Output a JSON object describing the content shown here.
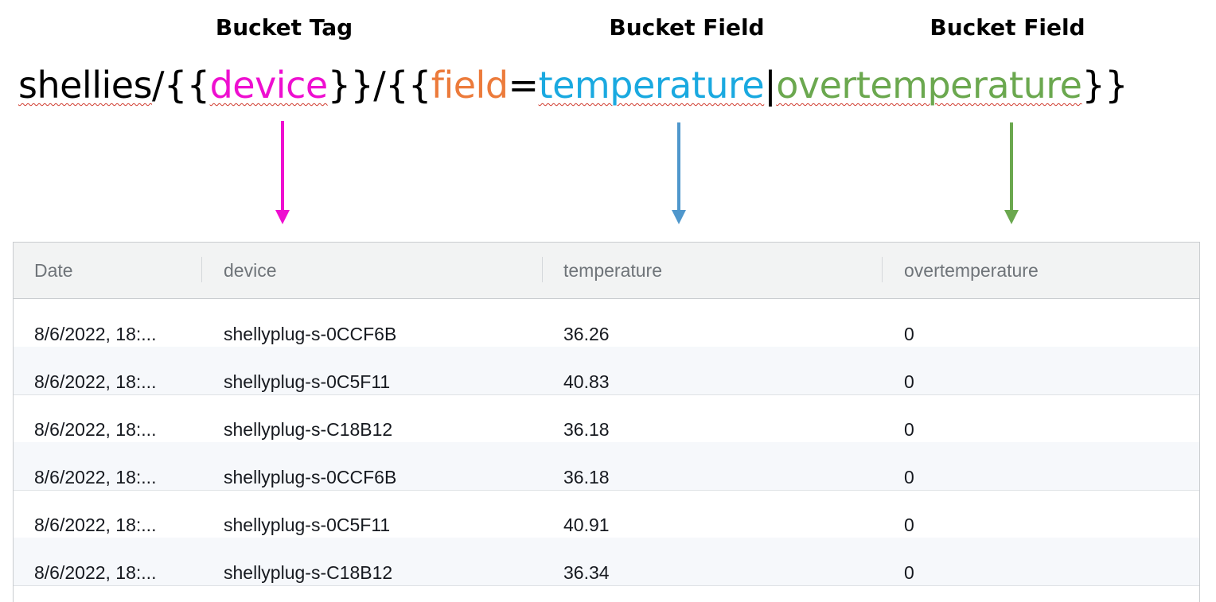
{
  "labels": {
    "tag": "Bucket Tag",
    "field_1": "Bucket Field",
    "field_2": "Bucket Field"
  },
  "template": {
    "prefix": "shellies",
    "slash_1": "/",
    "open_1": "{{",
    "device": "device",
    "close_1": "}}",
    "slash_2": "/",
    "open_2": "{{",
    "field": "field",
    "equals": "=",
    "temperature": "temperature",
    "pipe": "|",
    "overtemperature": "overtemperature",
    "close_2": "}}"
  },
  "colors": {
    "device": "#ee0fd0",
    "field": "#ec7b3b",
    "temperature": "#1aa9e0",
    "overtemperature": "#6ba84f",
    "arrow_tag": "#ee0fd0",
    "arrow_field_1": "#4f97cc",
    "arrow_field_2": "#6ba84f"
  },
  "table": {
    "headers": [
      "Date",
      "device",
      "temperature",
      "overtemperature"
    ],
    "rows": [
      [
        "8/6/2022, 18:...",
        "shellyplug-s-0CCF6B",
        "36.26",
        "0"
      ],
      [
        "8/6/2022, 18:...",
        "shellyplug-s-0C5F11",
        "40.83",
        "0"
      ],
      [
        "8/6/2022, 18:...",
        "shellyplug-s-C18B12",
        "36.18",
        "0"
      ],
      [
        "8/6/2022, 18:...",
        "shellyplug-s-0CCF6B",
        "36.18",
        "0"
      ],
      [
        "8/6/2022, 18:...",
        "shellyplug-s-0C5F11",
        "40.91",
        "0"
      ],
      [
        "8/6/2022, 18:...",
        "shellyplug-s-C18B12",
        "36.34",
        "0"
      ]
    ]
  }
}
